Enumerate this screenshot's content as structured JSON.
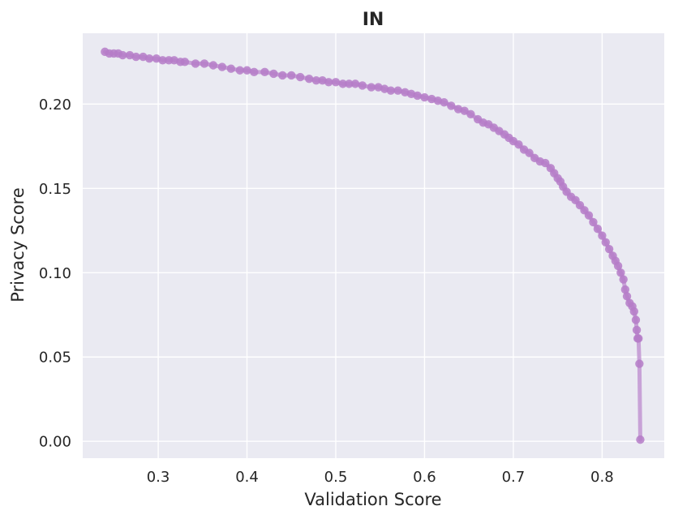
{
  "chart_data": {
    "type": "line",
    "title": "IN",
    "xlabel": "Validation Score",
    "ylabel": "Privacy Score",
    "xlim": [
      0.215,
      0.87
    ],
    "ylim": [
      -0.01,
      0.242
    ],
    "xticks": [
      {
        "value": 0.3,
        "label": "0.3"
      },
      {
        "value": 0.4,
        "label": "0.4"
      },
      {
        "value": 0.5,
        "label": "0.5"
      },
      {
        "value": 0.6,
        "label": "0.6"
      },
      {
        "value": 0.7,
        "label": "0.7"
      },
      {
        "value": 0.8,
        "label": "0.8"
      }
    ],
    "yticks": [
      {
        "value": 0.0,
        "label": "0.00"
      },
      {
        "value": 0.05,
        "label": "0.05"
      },
      {
        "value": 0.1,
        "label": "0.10"
      },
      {
        "value": 0.15,
        "label": "0.15"
      },
      {
        "value": 0.2,
        "label": "0.20"
      }
    ],
    "grid": true,
    "colors": {
      "background": "#eaeaf2",
      "grid": "#ffffff",
      "series": "#b57cc8",
      "line": "#c49ad4"
    },
    "series": [
      {
        "x": [
          0.24,
          0.245,
          0.25,
          0.255,
          0.26,
          0.268,
          0.275,
          0.283,
          0.29,
          0.298,
          0.305,
          0.312,
          0.318,
          0.325,
          0.33,
          0.342,
          0.352,
          0.362,
          0.372,
          0.382,
          0.392,
          0.4,
          0.408,
          0.42,
          0.43,
          0.44,
          0.45,
          0.46,
          0.47,
          0.478,
          0.485,
          0.492,
          0.5,
          0.508,
          0.515,
          0.522,
          0.53,
          0.54,
          0.548,
          0.555,
          0.562,
          0.57,
          0.578,
          0.585,
          0.592,
          0.6,
          0.608,
          0.615,
          0.622,
          0.63,
          0.638,
          0.645,
          0.652,
          0.66,
          0.666,
          0.672,
          0.678,
          0.684,
          0.69,
          0.695,
          0.7,
          0.706,
          0.712,
          0.718,
          0.724,
          0.73,
          0.736,
          0.742,
          0.746,
          0.75,
          0.753,
          0.756,
          0.76,
          0.765,
          0.77,
          0.775,
          0.78,
          0.785,
          0.79,
          0.795,
          0.8,
          0.804,
          0.808,
          0.812,
          0.815,
          0.818,
          0.821,
          0.824,
          0.826,
          0.828,
          0.831,
          0.834,
          0.836,
          0.838,
          0.839,
          0.84,
          0.841,
          0.842,
          0.843
        ],
        "y": [
          0.231,
          0.23,
          0.23,
          0.23,
          0.229,
          0.229,
          0.228,
          0.228,
          0.227,
          0.227,
          0.226,
          0.226,
          0.226,
          0.225,
          0.225,
          0.224,
          0.224,
          0.223,
          0.222,
          0.221,
          0.22,
          0.22,
          0.219,
          0.219,
          0.218,
          0.217,
          0.217,
          0.216,
          0.215,
          0.214,
          0.214,
          0.213,
          0.213,
          0.212,
          0.212,
          0.212,
          0.211,
          0.21,
          0.21,
          0.209,
          0.208,
          0.208,
          0.207,
          0.206,
          0.205,
          0.204,
          0.203,
          0.202,
          0.201,
          0.199,
          0.197,
          0.196,
          0.194,
          0.191,
          0.189,
          0.188,
          0.186,
          0.184,
          0.182,
          0.18,
          0.178,
          0.176,
          0.173,
          0.171,
          0.168,
          0.166,
          0.165,
          0.162,
          0.159,
          0.156,
          0.154,
          0.151,
          0.148,
          0.145,
          0.143,
          0.14,
          0.137,
          0.134,
          0.13,
          0.126,
          0.122,
          0.118,
          0.114,
          0.11,
          0.107,
          0.104,
          0.1,
          0.096,
          0.09,
          0.086,
          0.082,
          0.08,
          0.077,
          0.072,
          0.066,
          0.061,
          0.061,
          0.046,
          0.001
        ]
      }
    ]
  }
}
